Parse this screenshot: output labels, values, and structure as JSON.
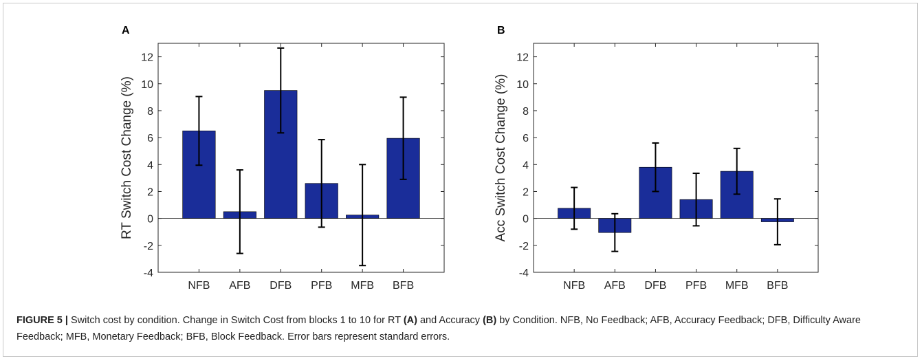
{
  "chart_data": [
    {
      "type": "bar",
      "panel": "A",
      "categories": [
        "NFB",
        "AFB",
        "DFB",
        "PFB",
        "MFB",
        "BFB"
      ],
      "values": [
        6.5,
        0.5,
        9.5,
        2.6,
        0.25,
        5.95
      ],
      "error": [
        2.55,
        3.1,
        3.15,
        3.25,
        3.75,
        3.05
      ],
      "ylabel": "RT Switch Cost Change (%)",
      "xlabel": "",
      "ylim": [
        -4,
        13
      ],
      "yticks": [
        -4,
        -2,
        0,
        2,
        4,
        6,
        8,
        10,
        12
      ],
      "bar_color": "#1a2d99",
      "grid": false
    },
    {
      "type": "bar",
      "panel": "B",
      "categories": [
        "NFB",
        "AFB",
        "DFB",
        "PFB",
        "MFB",
        "BFB"
      ],
      "values": [
        0.75,
        -1.05,
        3.8,
        1.4,
        3.5,
        -0.25
      ],
      "error": [
        1.55,
        1.4,
        1.8,
        1.95,
        1.7,
        1.7
      ],
      "ylabel": "Acc Switch Cost Change (%)",
      "xlabel": "",
      "ylim": [
        -4,
        13
      ],
      "yticks": [
        -4,
        -2,
        0,
        2,
        4,
        6,
        8,
        10,
        12
      ],
      "bar_color": "#1a2d99",
      "grid": false
    }
  ],
  "caption": {
    "label": "FIGURE 5 |",
    "part1": " Switch cost by condition. Change in Switch Cost from blocks 1 to 10 for RT ",
    "ref_a": "(A)",
    "part2": " and Accuracy ",
    "ref_b": "(B)",
    "part3": " by Condition. NFB, No Feedback; AFB, Accuracy Feedback; DFB, Difficulty Aware Feedback; MFB, Monetary Feedback; BFB, Block Feedback. Error bars represent standard errors."
  }
}
